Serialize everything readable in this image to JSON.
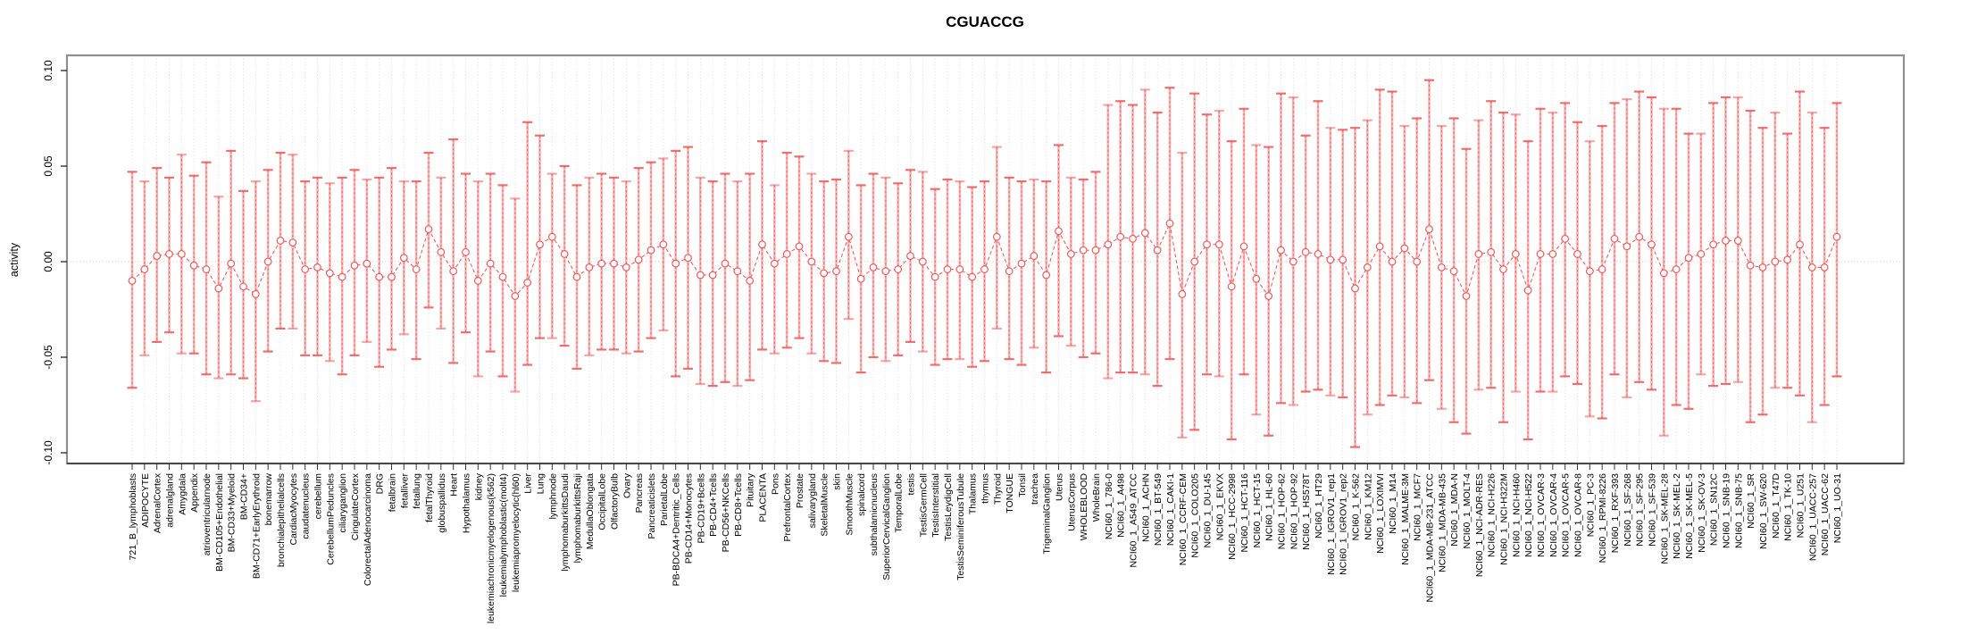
{
  "chart_data": {
    "type": "line+errorbar",
    "title": "CGUACCG",
    "ylabel": "activity",
    "xlabel": "",
    "ylim": [
      -0.1,
      0.1
    ],
    "yticks": [
      0.1,
      0.05,
      0.0,
      -0.05,
      -0.1
    ],
    "grid": "vertical-dotted",
    "legend": "none",
    "colors": {
      "bar_light": "#f9a6a6",
      "bar_dark": "#ee5f5f",
      "marker": "#ee5a5a",
      "line": "#ef5c5c",
      "grid": "#d8d8d8",
      "zero_line": "#c8c8c8",
      "box": "#8f8f8f",
      "tick": "#333333",
      "text": "#000000"
    },
    "categories": [
      "721_B_lymphoblasts",
      "ADIPOCYTE",
      "AdrenalCortex",
      "adrenalgland",
      "Amygdala",
      "Appendix",
      "atrioventricularnode",
      "BM-CD105+Endothelial",
      "BM-CD33+Myeloid",
      "BM-CD34+",
      "BM-CD71+EarlyErythroid",
      "bonemarrow",
      "bronchialepithelialcells",
      "CardiacMyocytes",
      "caudatenucleus",
      "cerebellum",
      "CerebellumPeduncles",
      "ciliaryganglion",
      "CingulateCortex",
      "ColorectalAdenocarcinoma",
      "DRG",
      "fetalbrain",
      "fetalliver",
      "fetallung",
      "fetalThyroid",
      "globuspallidus",
      "Heart",
      "Hypothalamus",
      "kidney",
      "leukemiachronicmyelogenous(k562)",
      "leukemialymphoblastic(molt4)",
      "leukemiapromyelocytic(hl60)",
      "Liver",
      "Lung",
      "lymphnode",
      "lymphomaburkittsDaudi",
      "lymphomaburkittsRaji",
      "MedullaOblongata",
      "OccipitalLobe",
      "OlfactoryBulb",
      "Ovary",
      "Pancreas",
      "Pancreaticislets",
      "ParietalLobe",
      "PB-BDCA4+Dentritic_Cells",
      "PB-CD14+Monocytes",
      "PB-CD19+Bcells",
      "PB-CD4+Tcells",
      "PB-CD56+NKCells",
      "PB-CD8+Tcells",
      "Pituitary",
      "PLACENTA",
      "Pons",
      "PrefrontalCortex",
      "Prostate",
      "salivarygland",
      "SkeletalMuscle",
      "skin",
      "SmoothMuscle",
      "spinalcord",
      "subthalamicnucleus",
      "SuperiorCervicalGanglion",
      "TemporalLobe",
      "testis",
      "TestisGermCell",
      "TestisInterstitial",
      "TestisLeydigCell",
      "TestisSeminiferousTubule",
      "Thalamus",
      "thymus",
      "Thyroid",
      "TONGUE",
      "Tonsil",
      "trachea",
      "TrigeminalGanglion",
      "Uterus",
      "UterusCorpus",
      "WHOLEBLOOD",
      "WholeBrain",
      "NCI60_1_786-0",
      "NCI60_1_A498",
      "NCI60_1_A549_ATCC",
      "NCI60_1_ACHN",
      "NCI60_1_BT-549",
      "NCI60_1_CAKI-1",
      "NCI60_1_CCRF-CEM",
      "NCI60_1_COLO205",
      "NCI60_1_DU-145",
      "NCI60_1_EKVX",
      "NCI60_1_HCC-2998",
      "NCI60_1_HCT-116",
      "NCI60_1_HCT-15",
      "NCI60_1_HL-60",
      "NCI60_1_HOP-62",
      "NCI60_1_HOP-92",
      "NCI60_1_HS578T",
      "NCI60_1_HT29",
      "NCI60_1_IGROV1_rep1",
      "NCI60_1_IGROV1_rep2",
      "NCI60_1_K-562",
      "NCI60_1_KM12",
      "NCI60_1_LOXIMVI",
      "NCI60_1_M14",
      "NCI60_1_MALME-3M",
      "NCI60_1_MCF7",
      "NCI60_1_MDA-MB-231_ATCC",
      "NCI60_1_MDA-MB-435",
      "NCI60_1_MDA-N",
      "NCI60_1_MOLT-4",
      "NCI60_1_NCI-ADR-RES",
      "NCI60_1_NCI-H226",
      "NCI60_1_NCI-H322M",
      "NCI60_1_NCI-H460",
      "NCI60_1_NCI-H522",
      "NCI60_1_OVCAR-3",
      "NCI60_1_OVCAR-4",
      "NCI60_1_OVCAR-5",
      "NCI60_1_OVCAR-8",
      "NCI60_1_PC-3",
      "NCI60_1_RPMI-8226",
      "NCI60_1_RXF-393",
      "NCI60_1_SF-268",
      "NCI60_1_SF-295",
      "NCI60_1_SF-539",
      "NCI60_1_SK-MEL-28",
      "NCI60_1_SK-MEL-2",
      "NCI60_1_SK-MEL-5",
      "NCI60_1_SK-OV-3",
      "NCI60_1_SN12C",
      "NCI60_1_SNB-19",
      "NCI60_1_SNB-75",
      "NCI60_1_SR",
      "NCI60_1_SW-620",
      "NCI60_1_T47D",
      "NCI60_1_TK-10",
      "NCI60_1_U251",
      "NCI60_1_UACC-257",
      "NCI60_1_UACC-62",
      "NCI60_1_UO-31"
    ],
    "means": [
      -0.01,
      -0.004,
      0.003,
      0.004,
      0.004,
      -0.002,
      -0.004,
      -0.014,
      -0.001,
      -0.013,
      -0.017,
      0.0,
      0.011,
      0.01,
      -0.004,
      -0.003,
      -0.006,
      -0.008,
      -0.002,
      -0.001,
      -0.008,
      -0.008,
      0.002,
      -0.004,
      0.017,
      0.005,
      -0.005,
      0.005,
      -0.01,
      -0.001,
      -0.008,
      -0.018,
      -0.011,
      0.009,
      0.013,
      0.004,
      -0.008,
      -0.003,
      -0.001,
      -0.001,
      -0.003,
      0.001,
      0.006,
      0.009,
      -0.001,
      0.002,
      -0.007,
      -0.007,
      -0.001,
      -0.005,
      -0.01,
      0.009,
      -0.001,
      0.004,
      0.008,
      0.0,
      -0.006,
      -0.005,
      0.013,
      -0.009,
      -0.003,
      -0.005,
      -0.004,
      0.003,
      0.0,
      -0.008,
      -0.004,
      -0.004,
      -0.008,
      -0.004,
      0.013,
      -0.005,
      -0.001,
      0.003,
      -0.007,
      0.016,
      0.004,
      0.006,
      0.006,
      0.009,
      0.013,
      0.012,
      0.015,
      0.006,
      0.02,
      -0.017,
      0.0,
      0.009,
      0.009,
      -0.013,
      0.008,
      -0.009,
      -0.018,
      0.006,
      0.0,
      0.005,
      0.004,
      0.001,
      0.001,
      -0.014,
      -0.003,
      0.008,
      0.0,
      0.007,
      0.0,
      0.017,
      -0.003,
      -0.005,
      -0.018,
      0.004,
      0.005,
      -0.004,
      0.004,
      -0.015,
      0.004,
      0.004,
      0.012,
      0.004,
      -0.005,
      -0.004,
      0.012,
      0.008,
      0.013,
      0.009,
      -0.006,
      -0.004,
      0.002,
      0.004,
      0.009,
      0.011,
      0.011,
      -0.002,
      -0.003,
      0.0,
      0.001,
      0.009,
      -0.003,
      -0.003,
      0.013
    ],
    "lower": [
      -0.066,
      -0.049,
      -0.042,
      -0.037,
      -0.048,
      -0.048,
      -0.059,
      -0.061,
      -0.059,
      -0.061,
      -0.073,
      -0.047,
      -0.035,
      -0.035,
      -0.049,
      -0.049,
      -0.052,
      -0.059,
      -0.049,
      -0.042,
      -0.055,
      -0.046,
      -0.038,
      -0.051,
      -0.024,
      -0.035,
      -0.053,
      -0.037,
      -0.06,
      -0.047,
      -0.06,
      -0.068,
      -0.054,
      -0.04,
      -0.04,
      -0.044,
      -0.056,
      -0.049,
      -0.046,
      -0.046,
      -0.048,
      -0.047,
      -0.04,
      -0.036,
      -0.06,
      -0.056,
      -0.064,
      -0.065,
      -0.063,
      -0.065,
      -0.062,
      -0.046,
      -0.048,
      -0.045,
      -0.04,
      -0.048,
      -0.052,
      -0.053,
      -0.03,
      -0.058,
      -0.05,
      -0.052,
      -0.049,
      -0.042,
      -0.047,
      -0.054,
      -0.051,
      -0.051,
      -0.055,
      -0.052,
      -0.035,
      -0.051,
      -0.054,
      -0.045,
      -0.058,
      -0.039,
      -0.044,
      -0.05,
      -0.048,
      -0.061,
      -0.058,
      -0.058,
      -0.059,
      -0.065,
      -0.051,
      -0.092,
      -0.088,
      -0.059,
      -0.06,
      -0.093,
      -0.059,
      -0.08,
      -0.091,
      -0.074,
      -0.075,
      -0.068,
      -0.067,
      -0.07,
      -0.071,
      -0.097,
      -0.08,
      -0.075,
      -0.07,
      -0.071,
      -0.074,
      -0.062,
      -0.077,
      -0.084,
      -0.09,
      -0.067,
      -0.066,
      -0.084,
      -0.068,
      -0.093,
      -0.068,
      -0.068,
      -0.06,
      -0.064,
      -0.081,
      -0.082,
      -0.059,
      -0.071,
      -0.063,
      -0.067,
      -0.091,
      -0.075,
      -0.077,
      -0.059,
      -0.065,
      -0.064,
      -0.063,
      -0.084,
      -0.08,
      -0.066,
      -0.066,
      -0.07,
      -0.084,
      -0.075,
      -0.06
    ],
    "upper": [
      0.047,
      0.042,
      0.049,
      0.044,
      0.056,
      0.045,
      0.052,
      0.034,
      0.058,
      0.037,
      0.042,
      0.048,
      0.057,
      0.056,
      0.042,
      0.044,
      0.041,
      0.044,
      0.048,
      0.043,
      0.044,
      0.049,
      0.042,
      0.042,
      0.057,
      0.044,
      0.064,
      0.046,
      0.042,
      0.046,
      0.04,
      0.033,
      0.073,
      0.066,
      0.046,
      0.05,
      0.04,
      0.044,
      0.046,
      0.044,
      0.042,
      0.049,
      0.052,
      0.054,
      0.058,
      0.06,
      0.044,
      0.042,
      0.046,
      0.042,
      0.046,
      0.063,
      0.04,
      0.057,
      0.055,
      0.046,
      0.042,
      0.043,
      0.058,
      0.04,
      0.046,
      0.044,
      0.041,
      0.048,
      0.047,
      0.038,
      0.043,
      0.042,
      0.039,
      0.042,
      0.06,
      0.044,
      0.042,
      0.043,
      0.042,
      0.061,
      0.044,
      0.043,
      0.047,
      0.082,
      0.084,
      0.082,
      0.09,
      0.078,
      0.091,
      0.057,
      0.088,
      0.077,
      0.079,
      0.063,
      0.08,
      0.061,
      0.06,
      0.088,
      0.086,
      0.066,
      0.084,
      0.07,
      0.069,
      0.07,
      0.074,
      0.09,
      0.089,
      0.071,
      0.075,
      0.095,
      0.071,
      0.075,
      0.059,
      0.074,
      0.084,
      0.078,
      0.077,
      0.063,
      0.08,
      0.078,
      0.083,
      0.073,
      0.063,
      0.071,
      0.083,
      0.085,
      0.089,
      0.086,
      0.08,
      0.08,
      0.067,
      0.067,
      0.083,
      0.086,
      0.086,
      0.079,
      0.07,
      0.078,
      0.067,
      0.089,
      0.078,
      0.07,
      0.083
    ]
  }
}
